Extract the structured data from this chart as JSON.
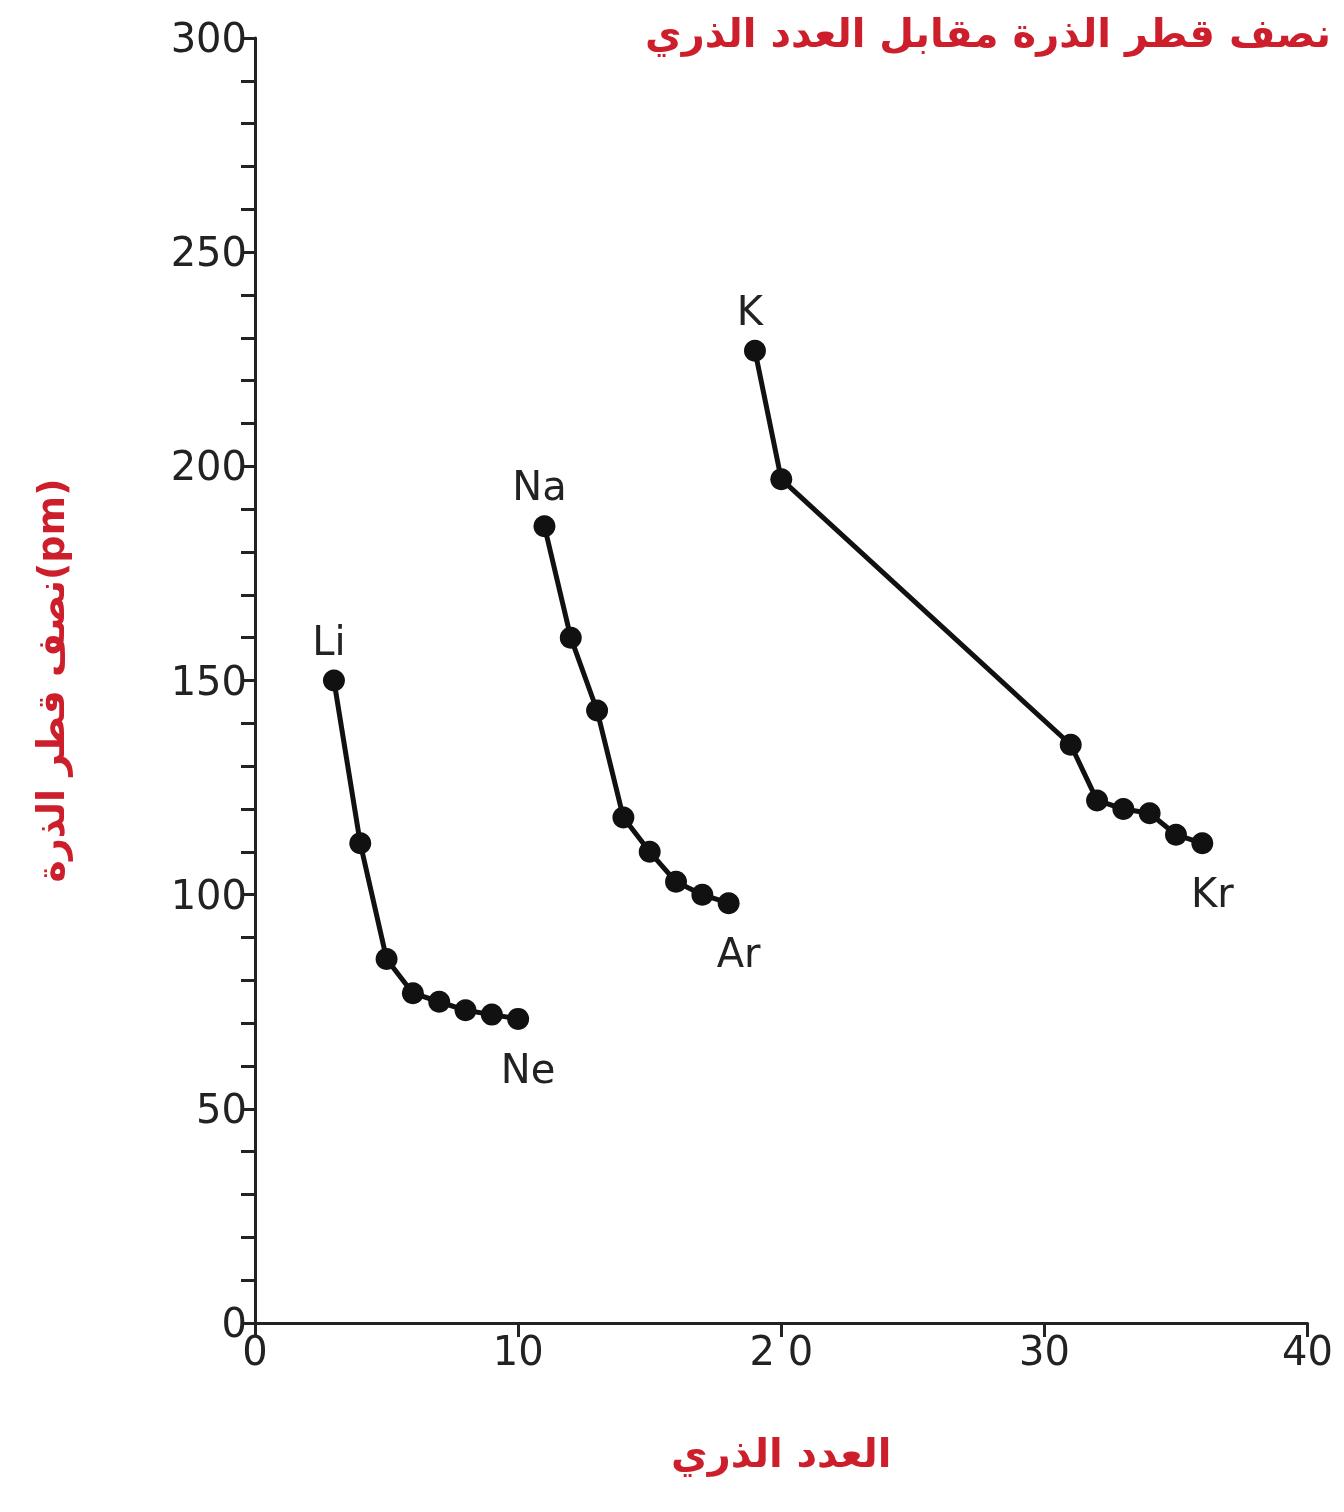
{
  "chart_data": {
    "type": "line",
    "title": "نصف قطر الذرة مقابل العدد الذري",
    "xlabel": "العدد الذري",
    "ylabel": "نصف قطر الذرة(pm)",
    "series": [
      {
        "color": "#111111",
        "x": [
          3,
          4,
          5,
          6,
          7,
          8,
          9,
          10
        ],
        "values": [
          150,
          112,
          85,
          77,
          75,
          73,
          72,
          71
        ]
      },
      {
        "color": "#111111",
        "x": [
          11,
          12,
          13,
          14,
          15,
          16,
          17,
          18
        ],
        "values": [
          186,
          160,
          143,
          118,
          110,
          103,
          100,
          98
        ]
      },
      {
        "color": "#111111",
        "x": [
          19,
          20,
          31,
          32,
          33,
          34,
          35,
          36
        ],
        "values": [
          227,
          197,
          135,
          122,
          120,
          119,
          114,
          112
        ]
      }
    ],
    "annotations": [
      {
        "text": "Li",
        "x": 3,
        "y": 150
      },
      {
        "text": "Ne",
        "x": 10,
        "y": 71
      },
      {
        "text": "Na",
        "x": 11,
        "y": 186
      },
      {
        "text": "Ar",
        "x": 18,
        "y": 98
      },
      {
        "text": "K",
        "x": 19,
        "y": 227
      },
      {
        "text": "Kr",
        "x": 36,
        "y": 112
      }
    ],
    "xlim": [
      0,
      40
    ],
    "xticks": [
      0,
      10,
      {
        "value": 20,
        "label": "2 0"
      },
      30,
      40
    ],
    "ylim": [
      0,
      300
    ],
    "yticks": [
      0,
      {
        "value": 10,
        "label": null
      },
      {
        "value": 20,
        "label": null
      },
      {
        "value": 30,
        "label": null
      },
      {
        "value": 40,
        "label": null
      },
      50,
      {
        "value": 60,
        "label": null
      },
      {
        "value": 70,
        "label": null
      },
      {
        "value": 80,
        "label": null
      },
      {
        "value": 90,
        "label": null
      },
      100,
      {
        "value": 110,
        "label": null
      },
      {
        "value": 120,
        "label": null
      },
      {
        "value": 130,
        "label": null
      },
      {
        "value": 140,
        "label": null
      },
      150,
      {
        "value": 160,
        "label": null
      },
      {
        "value": 170,
        "label": null
      },
      {
        "value": 180,
        "label": null
      },
      {
        "value": 190,
        "label": null
      },
      200,
      {
        "value": 210,
        "label": null
      },
      {
        "value": 220,
        "label": null
      },
      {
        "value": 230,
        "label": null
      },
      {
        "value": 240,
        "label": null
      },
      250,
      {
        "value": 260,
        "label": null
      },
      {
        "value": 270,
        "label": null
      },
      {
        "value": 280,
        "label": null
      },
      {
        "value": 290,
        "label": null
      },
      300
    ],
    "grid": false,
    "marker": "circle",
    "line_style": "solid"
  }
}
